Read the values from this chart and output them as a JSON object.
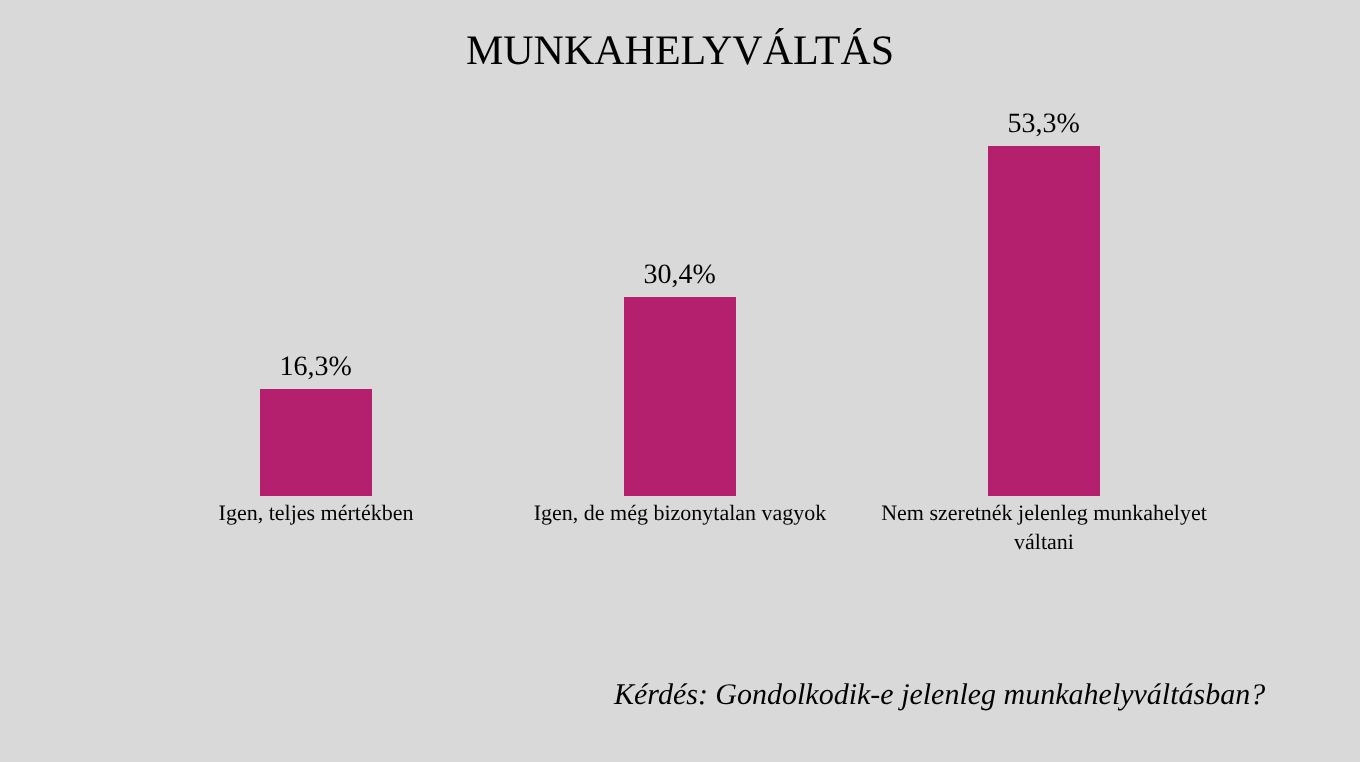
{
  "chart_data": {
    "type": "bar",
    "title": "MUNKAHELYVÁLTÁS",
    "categories": [
      "Igen, teljes mértékben",
      "Igen, de még bizonytalan vagyok",
      "Nem szeretnék jelenleg munkahelyet váltani"
    ],
    "values": [
      16.3,
      30.4,
      53.3
    ],
    "value_labels": [
      "16,3%",
      "30,4%",
      "53,3%"
    ],
    "color": "#b5206e",
    "annotations": [
      "Kérdés: Gondolkodik-e jelenleg munkahelyváltásban?"
    ]
  }
}
